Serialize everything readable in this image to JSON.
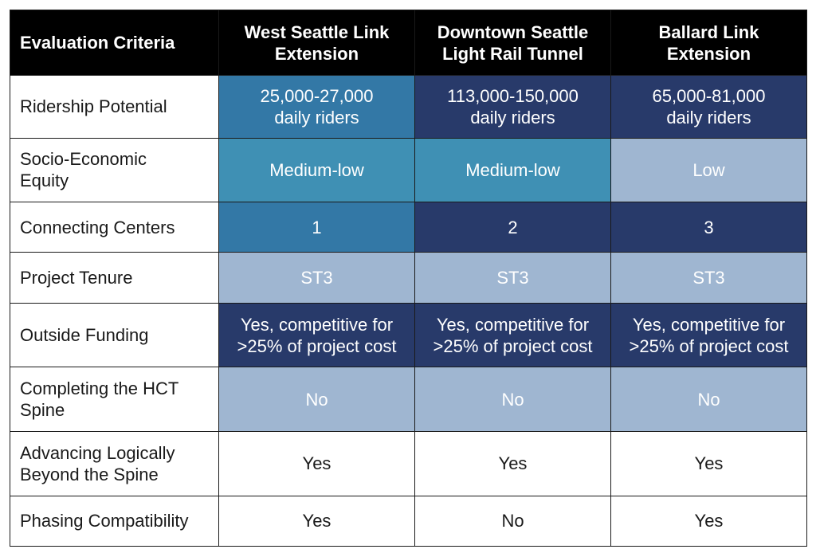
{
  "header": {
    "criteria_label": "Evaluation Criteria",
    "columns": [
      {
        "line1": "West Seattle Link",
        "line2": "Extension"
      },
      {
        "line1": "Downtown Seattle",
        "line2": "Light Rail Tunnel"
      },
      {
        "line1": "Ballard Link",
        "line2": "Extension"
      }
    ]
  },
  "colors": {
    "header_bg": "#000000",
    "dark_navy": "#283a6a",
    "medium_blue": "#3378a6",
    "teal_blue": "#3f90b4",
    "light_blue": "#9fb6d1",
    "white": "#ffffff"
  },
  "rows": [
    {
      "criteria": [
        "Ridership Potential"
      ],
      "cells": [
        {
          "lines": [
            "25,000-27,000",
            "daily riders"
          ],
          "color": "#3378a6"
        },
        {
          "lines": [
            "113,000-150,000",
            "daily riders"
          ],
          "color": "#283a6a"
        },
        {
          "lines": [
            "65,000-81,000",
            "daily riders"
          ],
          "color": "#283a6a"
        }
      ]
    },
    {
      "criteria": [
        "Socio-Economic",
        "Equity"
      ],
      "cells": [
        {
          "lines": [
            "Medium-low"
          ],
          "color": "#3f90b4"
        },
        {
          "lines": [
            "Medium-low"
          ],
          "color": "#3f90b4"
        },
        {
          "lines": [
            "Low"
          ],
          "color": "#9fb6d1"
        }
      ]
    },
    {
      "criteria": [
        "Connecting Centers"
      ],
      "cells": [
        {
          "lines": [
            "1"
          ],
          "color": "#3378a6"
        },
        {
          "lines": [
            "2"
          ],
          "color": "#283a6a"
        },
        {
          "lines": [
            "3"
          ],
          "color": "#283a6a"
        }
      ]
    },
    {
      "criteria": [
        "Project Tenure"
      ],
      "cells": [
        {
          "lines": [
            "ST3"
          ],
          "color": "#9fb6d1"
        },
        {
          "lines": [
            "ST3"
          ],
          "color": "#9fb6d1"
        },
        {
          "lines": [
            "ST3"
          ],
          "color": "#9fb6d1"
        }
      ]
    },
    {
      "criteria": [
        "Outside Funding"
      ],
      "cells": [
        {
          "lines": [
            "Yes, competitive for",
            ">25% of project cost"
          ],
          "color": "#283a6a"
        },
        {
          "lines": [
            "Yes, competitive for",
            ">25% of project cost"
          ],
          "color": "#283a6a"
        },
        {
          "lines": [
            "Yes, competitive for",
            ">25% of project cost"
          ],
          "color": "#283a6a"
        }
      ]
    },
    {
      "criteria": [
        "Completing the HCT",
        "Spine"
      ],
      "cells": [
        {
          "lines": [
            "No"
          ],
          "color": "#9fb6d1"
        },
        {
          "lines": [
            "No"
          ],
          "color": "#9fb6d1"
        },
        {
          "lines": [
            "No"
          ],
          "color": "#9fb6d1"
        }
      ]
    },
    {
      "criteria": [
        "Advancing Logically",
        "Beyond the Spine"
      ],
      "cells": [
        {
          "lines": [
            "Yes"
          ],
          "color": "#ffffff"
        },
        {
          "lines": [
            "Yes"
          ],
          "color": "#ffffff"
        },
        {
          "lines": [
            "Yes"
          ],
          "color": "#ffffff"
        }
      ]
    },
    {
      "criteria": [
        "Phasing Compatibility"
      ],
      "cells": [
        {
          "lines": [
            "Yes"
          ],
          "color": "#ffffff"
        },
        {
          "lines": [
            "No"
          ],
          "color": "#ffffff"
        },
        {
          "lines": [
            "Yes"
          ],
          "color": "#ffffff"
        }
      ]
    }
  ]
}
